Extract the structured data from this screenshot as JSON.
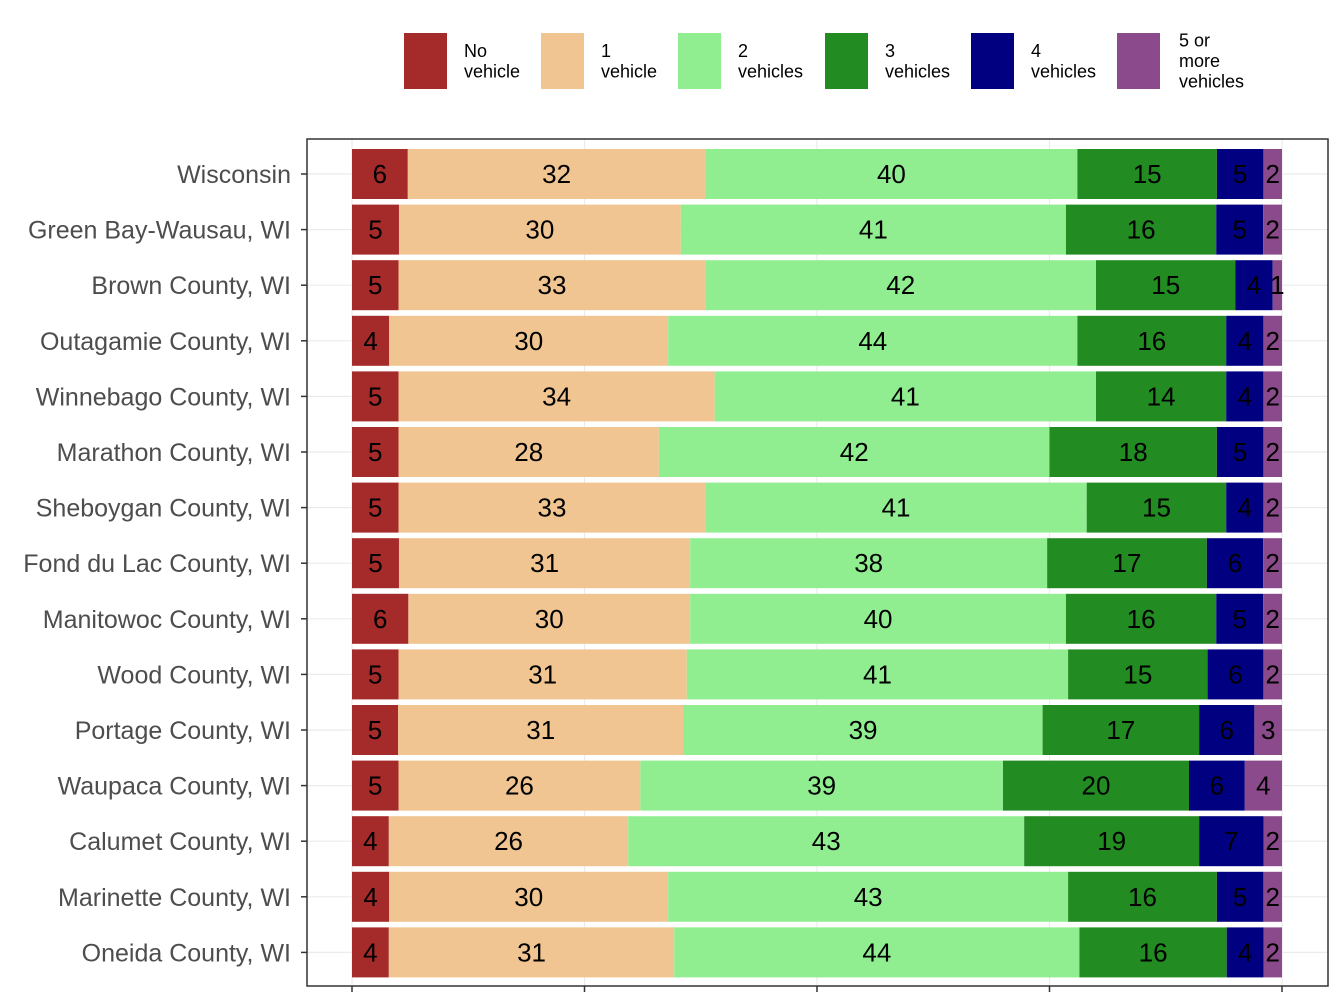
{
  "chart_data": {
    "type": "bar",
    "orientation": "horizontal",
    "stacked": true,
    "legend_position": "top",
    "grid": true,
    "title": "",
    "xlabel": "",
    "ylabel": "",
    "xlim": [
      0,
      100
    ],
    "categories": [
      "Wisconsin",
      "Green Bay-Wausau, WI",
      "Brown County, WI",
      "Outagamie County, WI",
      "Winnebago County, WI",
      "Marathon County, WI",
      "Sheboygan County, WI",
      "Fond du Lac County, WI",
      "Manitowoc County, WI",
      "Wood County, WI",
      "Portage County, WI",
      "Waupaca County, WI",
      "Calumet County, WI",
      "Marinette County, WI",
      "Oneida County, WI"
    ],
    "series": [
      {
        "name": "No vehicle",
        "legend_lines": [
          "No",
          "vehicle"
        ],
        "color": "#a52a2a",
        "values": [
          6,
          5,
          5,
          4,
          5,
          5,
          5,
          5,
          6,
          5,
          5,
          5,
          4,
          4,
          4
        ]
      },
      {
        "name": "1 vehicle",
        "legend_lines": [
          "1",
          "vehicle"
        ],
        "color": "#f0c591",
        "values": [
          32,
          30,
          33,
          30,
          34,
          28,
          33,
          31,
          30,
          31,
          31,
          26,
          26,
          30,
          31
        ]
      },
      {
        "name": "2 vehicles",
        "legend_lines": [
          "2",
          "vehicles"
        ],
        "color": "#90ee90",
        "values": [
          40,
          41,
          42,
          44,
          41,
          42,
          41,
          38,
          40,
          41,
          39,
          39,
          43,
          43,
          44
        ]
      },
      {
        "name": "3 vehicles",
        "legend_lines": [
          "3",
          "vehicles"
        ],
        "color": "#228b22",
        "values": [
          15,
          16,
          15,
          16,
          14,
          18,
          15,
          17,
          16,
          15,
          17,
          20,
          19,
          16,
          16
        ]
      },
      {
        "name": "4 vehicles",
        "legend_lines": [
          "4",
          "vehicles"
        ],
        "color": "#000080",
        "values": [
          5,
          5,
          4,
          4,
          4,
          5,
          4,
          6,
          5,
          6,
          6,
          6,
          7,
          5,
          4
        ]
      },
      {
        "name": "5 or more vehicles",
        "legend_lines": [
          "5 or",
          "more",
          "vehicles"
        ],
        "color": "#8b4a8b",
        "values": [
          2,
          2,
          1,
          2,
          2,
          2,
          2,
          2,
          2,
          2,
          3,
          4,
          2,
          2,
          2
        ]
      }
    ]
  }
}
